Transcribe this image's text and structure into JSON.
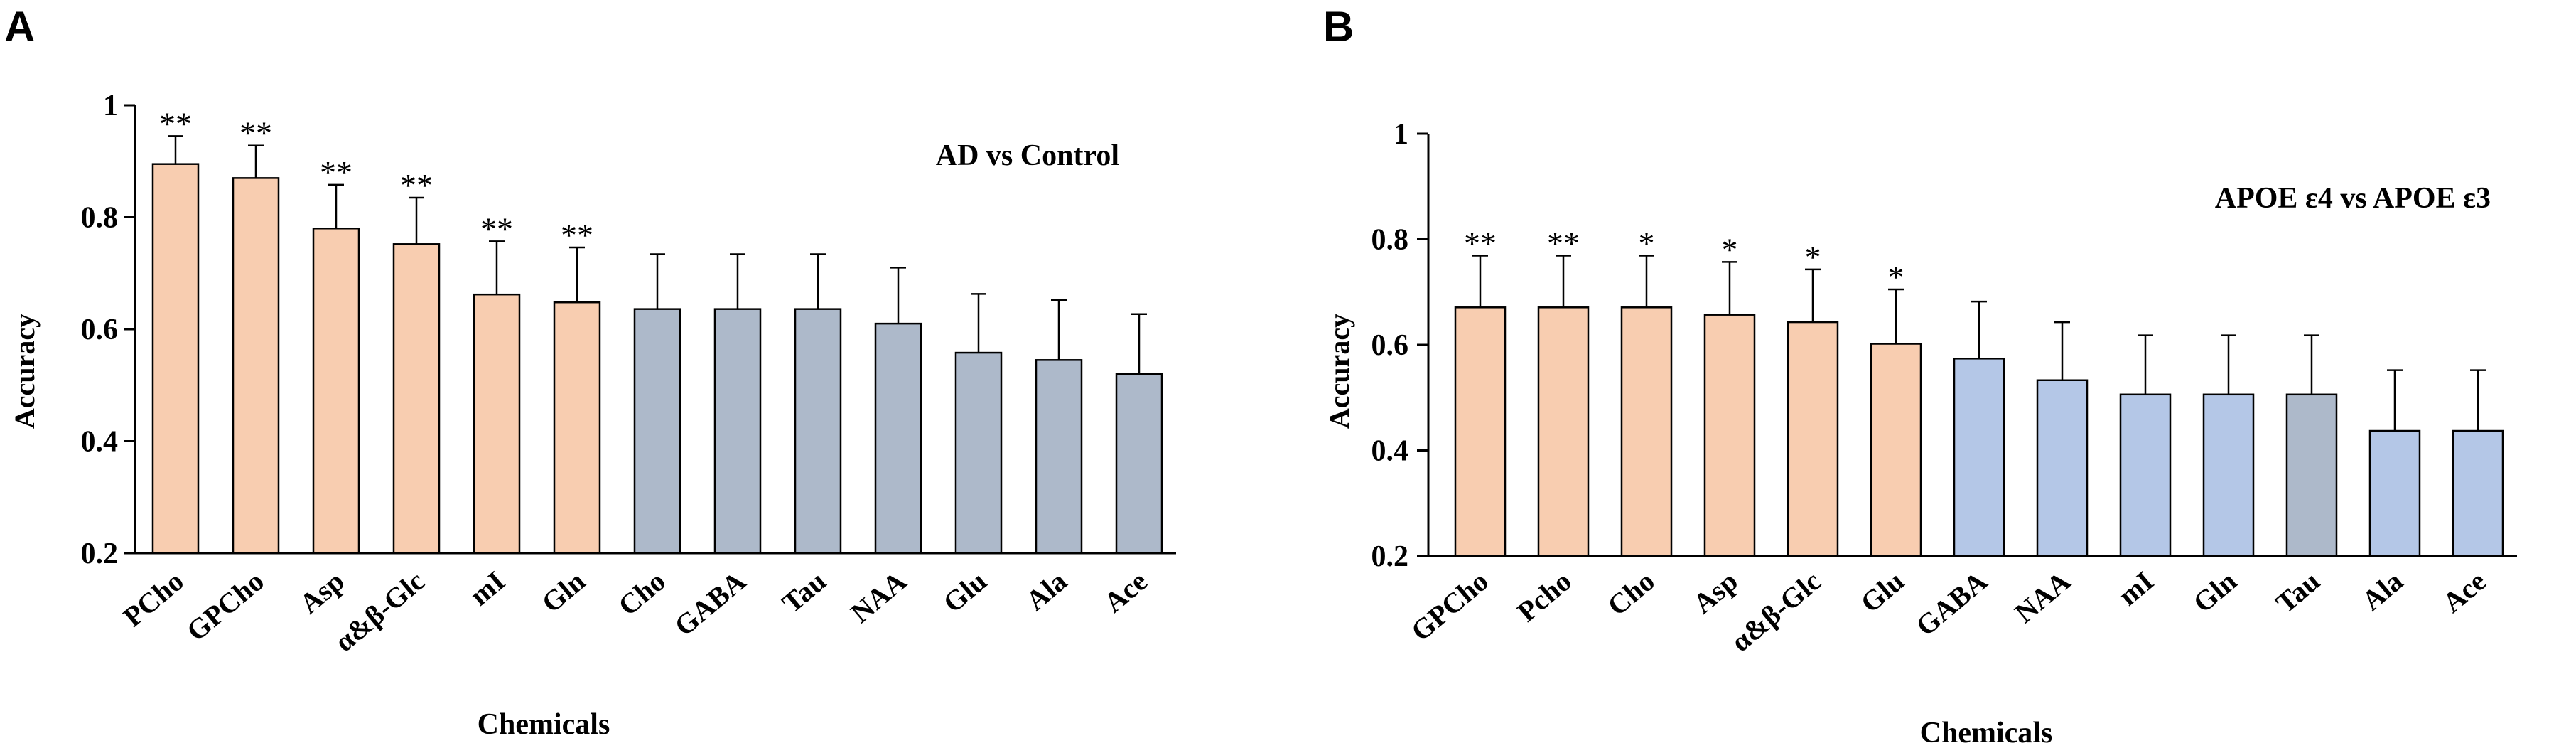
{
  "colors": {
    "significant": "#f8cdb0",
    "nonsig_a": "#adb9ca",
    "nonsig_b_light": "#b4c7e7",
    "nonsig_b_gray": "#adb9ca",
    "stroke": "#000000"
  },
  "chart_data": [
    {
      "type": "bar",
      "panel": "A",
      "title": "AD vs Control",
      "xlabel": "Chemicals",
      "ylabel": "Accuracy",
      "ylim": [
        0.2,
        1.0
      ],
      "yticks": [
        "0.2",
        "0.4",
        "0.6",
        "0.8",
        "1"
      ],
      "categories": [
        "PCho",
        "GPCho",
        "Asp",
        "α&β-Glc",
        "mI",
        "Gln",
        "Cho",
        "GABA",
        "Tau",
        "NAA",
        "Glu",
        "Ala",
        "Ace"
      ],
      "values": [
        0.895,
        0.87,
        0.78,
        0.752,
        0.662,
        0.648,
        0.636,
        0.636,
        0.636,
        0.61,
        0.558,
        0.545,
        0.52
      ],
      "errors": [
        0.05,
        0.058,
        0.078,
        0.083,
        0.095,
        0.098,
        0.098,
        0.098,
        0.098,
        0.1,
        0.105,
        0.107,
        0.107
      ],
      "significance": [
        "**",
        "**",
        "**",
        "**",
        "**",
        "**",
        "",
        "",
        "",
        "",
        "",
        "",
        ""
      ],
      "color_keys": [
        "significant",
        "significant",
        "significant",
        "significant",
        "significant",
        "significant",
        "nonsig_a",
        "nonsig_a",
        "nonsig_a",
        "nonsig_a",
        "nonsig_a",
        "nonsig_a",
        "nonsig_a"
      ]
    },
    {
      "type": "bar",
      "panel": "B",
      "title": "APOE ε4 vs APOE ε3",
      "xlabel": "Chemicals",
      "ylabel": "Accuracy",
      "ylim": [
        0.2,
        1.0
      ],
      "yticks": [
        "0.2",
        "0.4",
        "0.6",
        "0.8",
        "1"
      ],
      "categories": [
        "GPCho",
        "Pcho",
        "Cho",
        "Asp",
        "α&β-Glc",
        "Glu",
        "GABA",
        "NAA",
        "mI",
        "Gln",
        "Tau",
        "Ala",
        "Ace"
      ],
      "values": [
        0.671,
        0.671,
        0.671,
        0.657,
        0.643,
        0.602,
        0.574,
        0.533,
        0.506,
        0.506,
        0.506,
        0.437,
        0.437
      ],
      "errors": [
        0.098,
        0.098,
        0.098,
        0.1,
        0.1,
        0.103,
        0.108,
        0.11,
        0.112,
        0.112,
        0.112,
        0.115,
        0.115
      ],
      "significance": [
        "**",
        "**",
        "*",
        "*",
        "*",
        "*",
        "",
        "",
        "",
        "",
        "",
        "",
        ""
      ],
      "color_keys": [
        "significant",
        "significant",
        "significant",
        "significant",
        "significant",
        "significant",
        "nonsig_b_light",
        "nonsig_b_light",
        "nonsig_b_light",
        "nonsig_b_light",
        "nonsig_b_gray",
        "nonsig_b_light",
        "nonsig_b_light"
      ]
    }
  ]
}
